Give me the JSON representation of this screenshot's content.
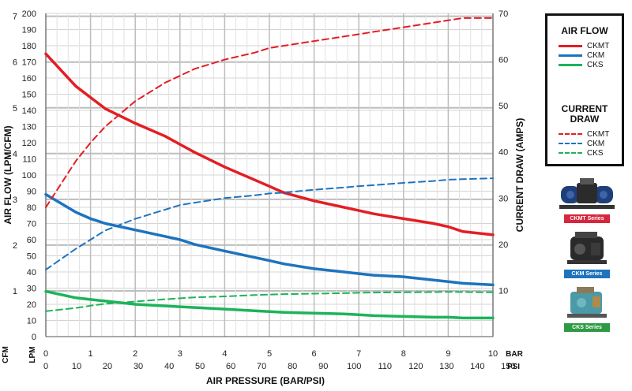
{
  "chart_data": {
    "type": "line",
    "x_bar_ticks": [
      "0",
      "1",
      "2",
      "3",
      "4",
      "5",
      "6",
      "7",
      "8",
      "9",
      "10"
    ],
    "x_bar_unit": "BAR",
    "x_psi_ticks": [
      "0",
      "10",
      "20",
      "30",
      "40",
      "50",
      "60",
      "70",
      "80",
      "90",
      "100",
      "110",
      "120",
      "130",
      "140",
      "150"
    ],
    "x_psi_unit": "PSI",
    "xlabel": "AIR PRESSURE (BAR/PSI)",
    "xlim": [
      0,
      10
    ],
    "ylabel_left": "AIR FLOW (LPM/CFM)",
    "ylim_left": [
      0,
      200
    ],
    "lpm_ticks": [
      "0",
      "10",
      "20",
      "30",
      "40",
      "50",
      "60",
      "70",
      "80",
      "90",
      "100",
      "110",
      "120",
      "130",
      "140",
      "150",
      "160",
      "170",
      "180",
      "190",
      "200"
    ],
    "lpm_unit": "LPM",
    "cfm_ticks": [
      "1",
      "2",
      "3",
      "4",
      "5",
      "6",
      "7"
    ],
    "cfm_unit": "CFM",
    "ylabel_right": "CURRENT DRAW (AMPS)",
    "ylim_right": [
      0,
      70
    ],
    "amps_ticks": [
      "10",
      "20",
      "30",
      "40",
      "50",
      "60",
      "70"
    ],
    "grid": true,
    "x": [
      0,
      0.67,
      1,
      1.33,
      2,
      2.67,
      3,
      3.33,
      4,
      4.67,
      5,
      5.33,
      6,
      6.67,
      7,
      7.33,
      8,
      8.67,
      9,
      9.33,
      10
    ],
    "series": [
      {
        "name": "CKMT",
        "group": "AIR FLOW",
        "axis": "left",
        "style": "solid",
        "color": "#e31e24",
        "values": [
          175,
          155,
          148,
          141,
          132,
          124,
          119,
          114,
          105,
          97,
          93,
          89,
          84,
          80,
          78,
          76,
          73,
          70,
          68,
          65,
          63
        ]
      },
      {
        "name": "CKM",
        "group": "AIR FLOW",
        "axis": "left",
        "style": "solid",
        "color": "#1e73be",
        "values": [
          88,
          77,
          73,
          70,
          66,
          62,
          60,
          57,
          53,
          49,
          47,
          45,
          42,
          40,
          39,
          38,
          37,
          35,
          34,
          33,
          32
        ]
      },
      {
        "name": "CKS",
        "group": "AIR FLOW",
        "axis": "left",
        "style": "solid",
        "color": "#1db35a",
        "values": [
          28,
          24,
          23,
          22,
          20,
          19,
          18.5,
          18,
          17,
          16,
          15.5,
          15,
          14.5,
          14,
          13.5,
          13,
          12.5,
          12,
          12,
          11.5,
          11.5
        ]
      },
      {
        "name": "CKMT",
        "group": "CURRENT DRAW",
        "axis": "right",
        "style": "dashed",
        "color": "#e31e24",
        "values": [
          28,
          38,
          42,
          45.5,
          51,
          55,
          56.5,
          58,
          60,
          61.5,
          62.5,
          63,
          64,
          65,
          65.5,
          66,
          67,
          68,
          68.5,
          69,
          69
        ]
      },
      {
        "name": "CKM",
        "group": "CURRENT DRAW",
        "axis": "right",
        "style": "dashed",
        "color": "#1e73be",
        "values": [
          14.5,
          19,
          21,
          23,
          25.5,
          27.5,
          28.5,
          29,
          30,
          30.6,
          31,
          31.2,
          31.8,
          32.3,
          32.6,
          32.8,
          33.3,
          33.7,
          34,
          34.1,
          34.3
        ]
      },
      {
        "name": "CKS",
        "group": "CURRENT DRAW",
        "axis": "right",
        "style": "dashed",
        "color": "#1db35a",
        "values": [
          5.5,
          6.2,
          6.7,
          7.1,
          7.6,
          8.1,
          8.3,
          8.5,
          8.7,
          9,
          9.1,
          9.2,
          9.3,
          9.4,
          9.5,
          9.55,
          9.6,
          9.65,
          9.7,
          9.65,
          9.6
        ]
      }
    ]
  },
  "legend": {
    "airflow_title": "AIR FLOW",
    "current_title_line1": "CURRENT",
    "current_title_line2": "DRAW",
    "airflow_items": [
      {
        "label": "CKMT",
        "color": "#e31e24"
      },
      {
        "label": "CKM",
        "color": "#1e73be"
      },
      {
        "label": "CKS",
        "color": "#1db35a"
      }
    ],
    "current_items": [
      {
        "label": "CKMT",
        "color": "#e31e24"
      },
      {
        "label": "CKM",
        "color": "#1e73be"
      },
      {
        "label": "CKS",
        "color": "#1db35a"
      }
    ]
  },
  "products": [
    {
      "label": "CKMT Series",
      "color": "#d7263d",
      "body_color": "#1f3f7a"
    },
    {
      "label": "CKM Series",
      "color": "#1e73be",
      "body_color": "#2a2a2a"
    },
    {
      "label": "CKS Series",
      "color": "#2f9a45",
      "body_color": "#4a9aa8"
    }
  ]
}
